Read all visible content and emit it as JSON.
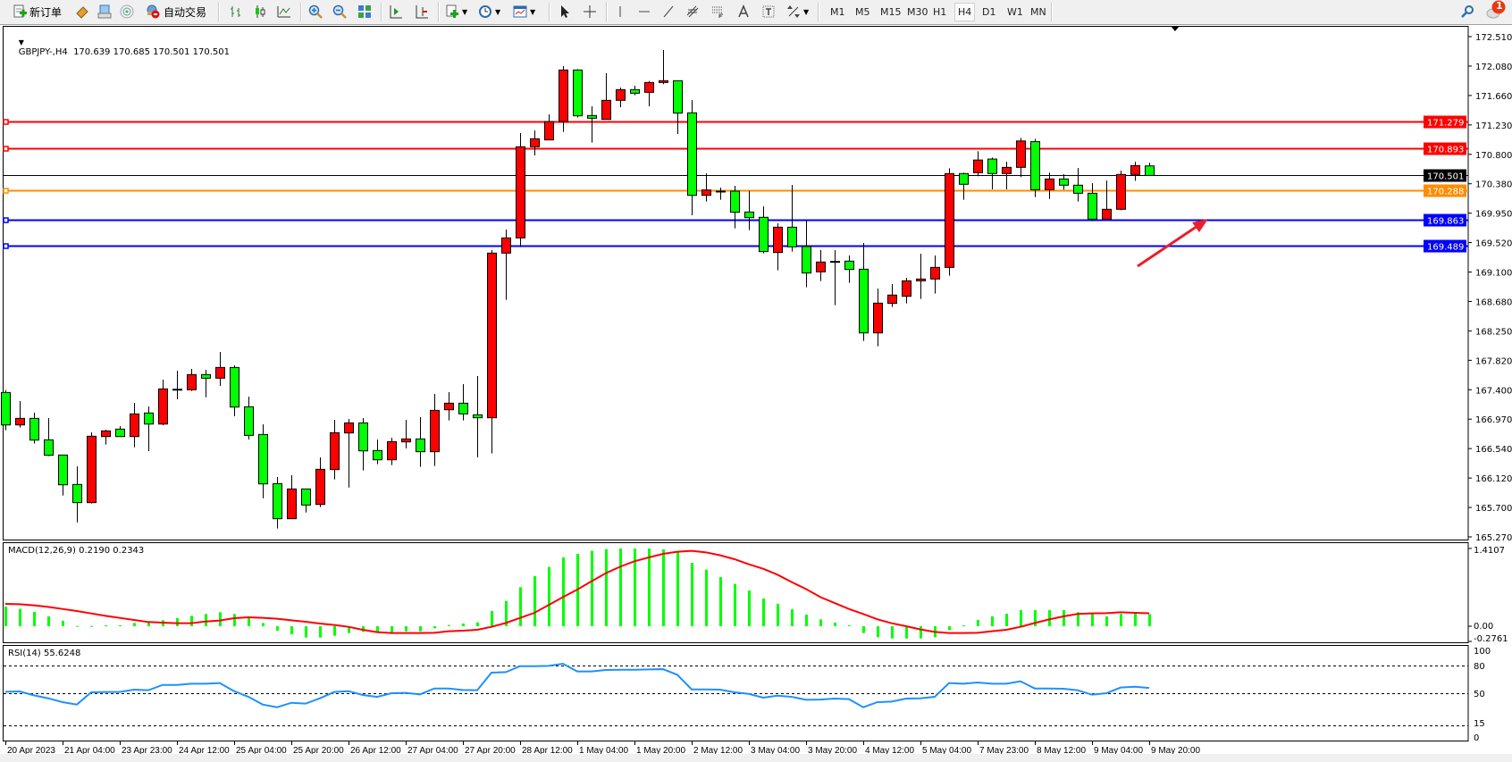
{
  "toolbar": {
    "new_order_label": "新订单",
    "auto_trade_label": "自动交易",
    "icons": [
      "new-order-icon",
      "market-watch-icon",
      "navigator-icon",
      "signals-icon",
      "auto-trading-icon",
      "bar-chart-icon",
      "candlestick-icon",
      "line-chart-icon",
      "zoom-in-icon",
      "zoom-out-icon",
      "tile-windows-icon",
      "auto-scroll-icon",
      "chart-shift-icon",
      "indicators-icon",
      "periods-icon",
      "templates-icon",
      "cursor-icon",
      "crosshair-icon",
      "vertical-line-icon",
      "horizontal-line-icon",
      "trendline-icon",
      "fibonacci-icon",
      "fibo-channel-icon",
      "text-icon",
      "text-label-icon",
      "arrows-icon",
      "search-icon",
      "notification-icon"
    ],
    "timeframes": [
      "M1",
      "M5",
      "M15",
      "M30",
      "H1",
      "H4",
      "D1",
      "W1",
      "MN"
    ],
    "active_timeframe": "H4",
    "notification_count": "1"
  },
  "chart": {
    "header": "GBPJPY-,H4  170.639 170.685 170.501 170.501",
    "macd_label": "MACD(12,26,9) 0.2190 0.2343",
    "rsi_label": "RSI(14) 55.6248",
    "price_axis": [
      "172.510",
      "172.080",
      "171.660",
      "171.230",
      "170.800",
      "170.380",
      "169.950",
      "169.520",
      "169.100",
      "168.680",
      "168.250",
      "167.820",
      "167.400",
      "166.970",
      "166.540",
      "166.120",
      "165.700",
      "165.270"
    ],
    "macd_axis": [
      "1.4107",
      "0.00",
      "-0.2761"
    ],
    "rsi_axis": [
      "100",
      "80",
      "50",
      "15",
      "0"
    ],
    "hlines": [
      {
        "price": 171.279,
        "label": "171.279",
        "color": "#ff0000"
      },
      {
        "price": 170.893,
        "label": "170.893",
        "color": "#ff0000"
      },
      {
        "price": 170.501,
        "label": "170.501",
        "color": "#000000"
      },
      {
        "price": 170.288,
        "label": "170.288",
        "color": "#ff8c00"
      },
      {
        "price": 169.863,
        "label": "169.863",
        "color": "#0000ff"
      },
      {
        "price": 169.489,
        "label": "169.489",
        "color": "#0000ff"
      }
    ],
    "colors": {
      "bull": "#ff0000",
      "bear": "#00ff00",
      "macd_hist": "#00ff00",
      "macd_signal": "#ff0000",
      "rsi": "#1e90ff",
      "arrow": "#e8202a"
    }
  },
  "chart_data": {
    "type": "candlestick",
    "symbol": "GBPJPY-",
    "timeframe": "H4",
    "ylim": [
      165.27,
      172.51
    ],
    "grid": false,
    "x_tick_labels": [
      "20 Apr 2023",
      "21 Apr 04:00",
      "23 Apr 23:00",
      "24 Apr 12:00",
      "25 Apr 04:00",
      "25 Apr 20:00",
      "26 Apr 12:00",
      "27 Apr 04:00",
      "27 Apr 20:00",
      "28 Apr 12:00",
      "1 May 04:00",
      "1 May 20:00",
      "2 May 12:00",
      "3 May 04:00",
      "3 May 20:00",
      "4 May 12:00",
      "5 May 04:00",
      "7 May 23:00",
      "8 May 12:00",
      "9 May 04:00",
      "9 May 20:00"
    ],
    "ohlc": [
      [
        167.36,
        167.394,
        166.813,
        166.89
      ],
      [
        166.89,
        167.235,
        166.852,
        166.985
      ],
      [
        166.985,
        167.067,
        166.619,
        166.671
      ],
      [
        166.675,
        166.989,
        166.438,
        166.451
      ],
      [
        166.455,
        166.455,
        165.869,
        166.024
      ],
      [
        166.029,
        166.291,
        165.481,
        165.766
      ],
      [
        165.766,
        166.783,
        165.753,
        166.727
      ],
      [
        166.722,
        166.821,
        166.606,
        166.804
      ],
      [
        166.83,
        166.873,
        166.722,
        166.722
      ],
      [
        166.722,
        167.209,
        166.567,
        167.05
      ],
      [
        167.063,
        167.157,
        166.511,
        166.903
      ],
      [
        166.903,
        167.545,
        166.886,
        167.412
      ],
      [
        167.407,
        167.675,
        167.261,
        167.399
      ],
      [
        167.399,
        167.7,
        167.382,
        167.619
      ],
      [
        167.619,
        167.687,
        167.291,
        167.567
      ],
      [
        167.567,
        167.946,
        167.455,
        167.722
      ],
      [
        167.722,
        167.752,
        167.015,
        167.149
      ],
      [
        167.153,
        167.3,
        166.679,
        166.739
      ],
      [
        166.752,
        166.899,
        165.83,
        166.037
      ],
      [
        166.041,
        166.136,
        165.391,
        165.533
      ],
      [
        165.533,
        166.162,
        165.533,
        165.964
      ],
      [
        165.964,
        165.964,
        165.623,
        165.731
      ],
      [
        165.74,
        166.421,
        165.701,
        166.248
      ],
      [
        166.244,
        166.964,
        166.102,
        166.778
      ],
      [
        166.774,
        166.977,
        165.985,
        166.92
      ],
      [
        166.92,
        166.989,
        166.231,
        166.515
      ],
      [
        166.52,
        166.679,
        166.322,
        166.386
      ],
      [
        166.386,
        166.705,
        166.309,
        166.649
      ],
      [
        166.645,
        166.964,
        166.55,
        166.688
      ],
      [
        166.688,
        167.002,
        166.283,
        166.503
      ],
      [
        166.503,
        167.338,
        166.296,
        167.101
      ],
      [
        167.11,
        167.364,
        166.955,
        167.205
      ],
      [
        167.205,
        167.481,
        166.955,
        167.05
      ],
      [
        167.037,
        167.597,
        166.421,
        166.994
      ],
      [
        166.994,
        169.42,
        166.477,
        169.377
      ],
      [
        169.377,
        169.718,
        168.701,
        169.597
      ],
      [
        169.597,
        171.114,
        169.464,
        170.916
      ],
      [
        170.916,
        171.153,
        170.791,
        171.032
      ],
      [
        171.015,
        171.385,
        171.015,
        171.282
      ],
      [
        171.282,
        172.083,
        171.131,
        172.027
      ],
      [
        172.027,
        172.04,
        171.338,
        171.364
      ],
      [
        171.368,
        171.502,
        170.976,
        171.329
      ],
      [
        171.312,
        171.98,
        171.312,
        171.588
      ],
      [
        171.588,
        171.773,
        171.489,
        171.743
      ],
      [
        171.743,
        171.799,
        171.661,
        171.691
      ],
      [
        171.704,
        171.868,
        171.502,
        171.846
      ],
      [
        171.846,
        172.316,
        171.821,
        171.872
      ],
      [
        171.872,
        171.872,
        171.101,
        171.403
      ],
      [
        171.407,
        171.592,
        169.925,
        170.213
      ],
      [
        170.213,
        170.532,
        170.123,
        170.291
      ],
      [
        170.274,
        170.325,
        170.149,
        170.269
      ],
      [
        170.274,
        170.351,
        169.735,
        169.968
      ],
      [
        169.972,
        170.278,
        169.709,
        169.89
      ],
      [
        169.895,
        170.054,
        169.373,
        169.399
      ],
      [
        169.386,
        169.808,
        169.127,
        169.752
      ],
      [
        169.752,
        170.364,
        169.399,
        169.468
      ],
      [
        169.472,
        169.851,
        168.882,
        169.089
      ],
      [
        169.106,
        169.42,
        168.972,
        169.248
      ],
      [
        169.257,
        169.42,
        168.623,
        169.252
      ],
      [
        169.261,
        169.343,
        168.946,
        169.14
      ],
      [
        169.144,
        169.524,
        168.106,
        168.222
      ],
      [
        168.222,
        168.864,
        168.029,
        168.653
      ],
      [
        168.649,
        168.929,
        168.597,
        168.77
      ],
      [
        168.752,
        169.02,
        168.649,
        168.976
      ],
      [
        168.976,
        169.369,
        168.714,
        169.002
      ],
      [
        169.002,
        169.343,
        168.791,
        169.17
      ],
      [
        169.17,
        170.605,
        169.05,
        170.528
      ],
      [
        170.528,
        170.541,
        170.149,
        170.373
      ],
      [
        170.541,
        170.85,
        170.49,
        170.724
      ],
      [
        170.738,
        170.76,
        170.299,
        170.528
      ],
      [
        170.528,
        170.7,
        170.299,
        170.618
      ],
      [
        170.618,
        171.045,
        170.476,
        171.0
      ],
      [
        170.99,
        171.03,
        170.187,
        170.295
      ],
      [
        170.295,
        170.541,
        170.161,
        170.45
      ],
      [
        170.45,
        170.519,
        170.295,
        170.36
      ],
      [
        170.36,
        170.609,
        170.123,
        170.243
      ],
      [
        170.243,
        170.39,
        169.838,
        169.868
      ],
      [
        169.868,
        170.429,
        169.868,
        170.011
      ],
      [
        170.011,
        170.571,
        169.998,
        170.515
      ],
      [
        170.515,
        170.7,
        170.424,
        170.644
      ],
      [
        170.639,
        170.685,
        170.501,
        170.501
      ]
    ],
    "macd": {
      "ylim": [
        -0.2761,
        1.4107
      ],
      "histogram": [
        0.357,
        0.313,
        0.259,
        0.178,
        0.097,
        0.005,
        0.005,
        0.016,
        0.016,
        0.059,
        0.081,
        0.108,
        0.146,
        0.189,
        0.222,
        0.254,
        0.222,
        0.178,
        0.059,
        -0.081,
        -0.146,
        -0.205,
        -0.205,
        -0.173,
        -0.124,
        -0.103,
        -0.108,
        -0.108,
        -0.092,
        -0.092,
        -0.038,
        0.016,
        0.049,
        0.07,
        0.276,
        0.459,
        0.708,
        0.908,
        1.075,
        1.248,
        1.313,
        1.367,
        1.399,
        1.41,
        1.41,
        1.41,
        1.394,
        1.356,
        1.151,
        1.026,
        0.891,
        0.767,
        0.648,
        0.502,
        0.405,
        0.308,
        0.211,
        0.124,
        0.065,
        0.016,
        -0.124,
        -0.2,
        -0.222,
        -0.222,
        -0.222,
        -0.2,
        -0.07,
        0.016,
        0.113,
        0.178,
        0.227,
        0.292,
        0.292,
        0.292,
        0.292,
        0.254,
        0.243,
        0.178,
        0.222,
        0.243,
        0.219
      ],
      "signal": [
        0.405,
        0.4,
        0.378,
        0.351,
        0.313,
        0.276,
        0.232,
        0.189,
        0.151,
        0.113,
        0.076,
        0.065,
        0.054,
        0.054,
        0.086,
        0.103,
        0.146,
        0.162,
        0.151,
        0.135,
        0.108,
        0.081,
        0.049,
        0.022,
        -0.011,
        -0.065,
        -0.108,
        -0.124,
        -0.124,
        -0.124,
        -0.119,
        -0.092,
        -0.081,
        -0.065,
        -0.011,
        0.059,
        0.151,
        0.243,
        0.384,
        0.529,
        0.665,
        0.816,
        0.962,
        1.08,
        1.178,
        1.248,
        1.313,
        1.351,
        1.367,
        1.34,
        1.286,
        1.216,
        1.124,
        1.043,
        0.935,
        0.8,
        0.675,
        0.529,
        0.421,
        0.313,
        0.222,
        0.124,
        0.054,
        0.0,
        -0.059,
        -0.103,
        -0.124,
        -0.124,
        -0.119,
        -0.092,
        -0.065,
        -0.011,
        0.059,
        0.124,
        0.178,
        0.222,
        0.232,
        0.238,
        0.254,
        0.243,
        0.2343
      ]
    },
    "rsi": {
      "ylim": [
        0,
        100
      ],
      "levels": [
        80,
        50,
        15
      ],
      "values": [
        51.6,
        51.9,
        47.7,
        44.5,
        40.4,
        37.8,
        51.0,
        51.3,
        51.3,
        53.8,
        53.2,
        58.9,
        58.9,
        60.2,
        60.2,
        60.9,
        52.2,
        46.1,
        37.8,
        34.9,
        39.7,
        38.8,
        44.5,
        51.3,
        52.2,
        48.1,
        46.1,
        50.0,
        50.3,
        48.7,
        55.1,
        55.1,
        53.5,
        53.2,
        72.1,
        72.7,
        79.1,
        79.1,
        79.5,
        81.7,
        73.4,
        73.4,
        75.0,
        75.3,
        75.3,
        75.6,
        75.9,
        69.8,
        54.1,
        54.1,
        53.8,
        51.0,
        49.3,
        45.2,
        47.4,
        46.1,
        42.9,
        43.2,
        44.2,
        43.6,
        34.9,
        40.4,
        41.0,
        44.2,
        44.5,
        46.1,
        60.9,
        60.2,
        61.5,
        60.2,
        60.2,
        62.8,
        55.1,
        55.1,
        54.8,
        53.2,
        48.4,
        50.0,
        56.1,
        57.0,
        55.6
      ]
    }
  }
}
